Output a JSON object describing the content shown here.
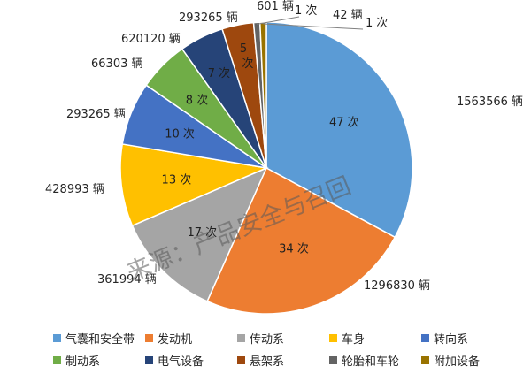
{
  "chart_data": {
    "type": "pie",
    "categories": [
      "气囊和安全带",
      "发动机",
      "传动系",
      "车身",
      "转向系",
      "制动系",
      "电气设备",
      "悬架系",
      "轮胎和车轮",
      "附加设备"
    ],
    "values": [
      47,
      34,
      17,
      13,
      10,
      8,
      7,
      5,
      1,
      1
    ],
    "value_unit": "次",
    "vehicle_labels": [
      "1563566 辆",
      "1296830 辆",
      "361994 辆",
      "428993 辆",
      "293265 辆",
      "66303 辆",
      "620120 辆",
      "293265 辆",
      "601 辆",
      "42 辆"
    ],
    "value_labels": [
      "47 次",
      "34 次",
      "17 次",
      "13 次",
      "10 次",
      "8 次",
      "7 次",
      "5 次",
      "1 次",
      "1 次"
    ],
    "colors": [
      "#5B9BD5",
      "#ED7D31",
      "#A5A5A5",
      "#FFC000",
      "#4472C4",
      "#70AD47",
      "#264478",
      "#9E480E",
      "#636363",
      "#997300"
    ],
    "legend_position": "bottom"
  },
  "watermark": "来源：产品安全与召回"
}
